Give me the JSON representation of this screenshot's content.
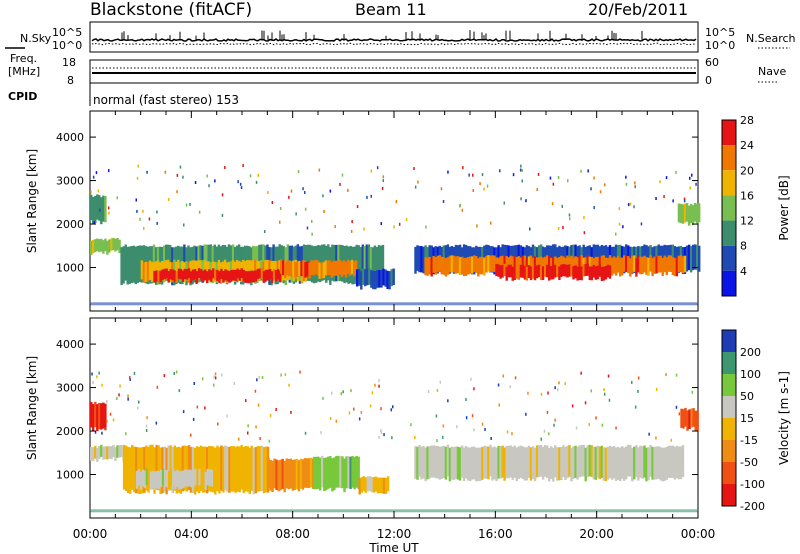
{
  "header": {
    "station": "Blackstone (fitACF)",
    "beam": "Beam 11",
    "date": "20/Feb/2011"
  },
  "noise_panel": {
    "left_label": "N.Sky",
    "right_label": "N.Search",
    "left_ticks": [
      "10^5",
      "10^0"
    ],
    "right_ticks": [
      "10^5",
      "10^0"
    ]
  },
  "freq_panel": {
    "left_label_1": "Freq.",
    "left_label_2": "[MHz]",
    "right_label": "Nave",
    "left_ticks": [
      "18",
      "8"
    ],
    "right_ticks": [
      "60",
      "0"
    ]
  },
  "cpid": {
    "label": "CPID",
    "text": "normal (fast stereo) 153"
  },
  "chart_data": [
    {
      "type": "heatmap",
      "title": "",
      "xlabel": "Time UT",
      "ylabel": "Slant Range [km]",
      "xlim_hours": [
        0,
        24
      ],
      "ylim_km": [
        0,
        4600
      ],
      "y_ticks": [
        1000,
        2000,
        3000,
        4000
      ],
      "x_tick_labels": [
        "00:00",
        "04:00",
        "08:00",
        "12:00",
        "16:00",
        "20:00",
        "00:00"
      ],
      "colorbar": {
        "label": "Power [dB]",
        "tick_labels": [
          "4",
          "8",
          "12",
          "16",
          "20",
          "24",
          "28"
        ],
        "colors": [
          "#0a14e6",
          "#1f4ab4",
          "#3c8c6e",
          "#78be50",
          "#f0b400",
          "#f07800",
          "#e61414"
        ]
      },
      "regions": [
        {
          "t0": 0.0,
          "t1": 1.2,
          "r0": 1350,
          "r1": 1650,
          "level": 3
        },
        {
          "t0": 0.0,
          "t1": 0.6,
          "r0": 2050,
          "r1": 2650,
          "level": 2
        },
        {
          "t0": 1.2,
          "t1": 11.6,
          "r0": 650,
          "r1": 1500,
          "level": 2
        },
        {
          "t0": 2.0,
          "t1": 8.5,
          "r0": 700,
          "r1": 1150,
          "level": 4
        },
        {
          "t0": 2.5,
          "t1": 7.5,
          "r0": 700,
          "r1": 950,
          "level": 6
        },
        {
          "t0": 7.5,
          "t1": 10.5,
          "r0": 800,
          "r1": 1150,
          "level": 5
        },
        {
          "t0": 10.5,
          "t1": 12.0,
          "r0": 550,
          "r1": 950,
          "level": 1
        },
        {
          "t0": 12.8,
          "t1": 24.0,
          "r0": 900,
          "r1": 1500,
          "level": 1
        },
        {
          "t0": 13.2,
          "t1": 23.5,
          "r0": 850,
          "r1": 1250,
          "level": 5
        },
        {
          "t0": 16.0,
          "t1": 20.5,
          "r0": 750,
          "r1": 1050,
          "level": 6
        },
        {
          "t0": 23.2,
          "t1": 24.0,
          "r0": 2000,
          "r1": 2450,
          "level": 3
        }
      ]
    },
    {
      "type": "heatmap",
      "title": "",
      "xlabel": "Time UT",
      "ylabel": "Slant Range [km]",
      "xlim_hours": [
        0,
        24
      ],
      "ylim_km": [
        0,
        4600
      ],
      "y_ticks": [
        1000,
        2000,
        3000,
        4000
      ],
      "x_tick_labels": [
        "00:00",
        "04:00",
        "08:00",
        "12:00",
        "16:00",
        "20:00",
        "00:00"
      ],
      "colorbar": {
        "label": "Velocity [m s-1]",
        "tick_labels": [
          "200",
          "100",
          "50",
          "15",
          "-15",
          "-50",
          "-100",
          "-200"
        ],
        "colors": [
          "#1e3cb4",
          "#3c966e",
          "#78c83c",
          "#c8c8c0",
          "#f0b400",
          "#f08c14",
          "#f05014",
          "#e61414"
        ]
      },
      "regions": [
        {
          "t0": 0.0,
          "t1": 0.6,
          "r0": 2050,
          "r1": 2650,
          "level": 7
        },
        {
          "t0": 0.0,
          "t1": 1.3,
          "r0": 1350,
          "r1": 1650,
          "level": 3
        },
        {
          "t0": 1.3,
          "t1": 7.0,
          "r0": 600,
          "r1": 1650,
          "level": 4
        },
        {
          "t0": 1.8,
          "t1": 4.8,
          "r0": 700,
          "r1": 1100,
          "level": 3
        },
        {
          "t0": 7.0,
          "t1": 8.8,
          "r0": 650,
          "r1": 1350,
          "level": 5
        },
        {
          "t0": 8.8,
          "t1": 10.6,
          "r0": 650,
          "r1": 1400,
          "level": 2
        },
        {
          "t0": 10.6,
          "t1": 11.8,
          "r0": 600,
          "r1": 950,
          "level": 4
        },
        {
          "t0": 12.8,
          "t1": 23.4,
          "r0": 900,
          "r1": 1650,
          "level": 3
        },
        {
          "t0": 23.3,
          "t1": 24.0,
          "r0": 2050,
          "r1": 2500,
          "level": 6
        }
      ]
    }
  ],
  "xlabel": "Time UT"
}
